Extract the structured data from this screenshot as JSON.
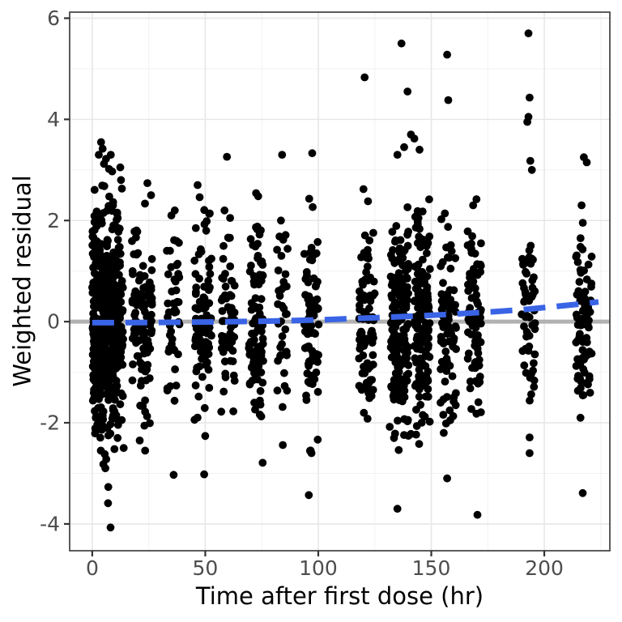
{
  "chart_data": {
    "type": "scatter",
    "title": "",
    "xlabel": "Time after first dose (hr)",
    "ylabel": "Weighted residual",
    "xlim": [
      -10,
      229
    ],
    "ylim": [
      -4.53,
      6.12
    ],
    "x_ticks": [
      0,
      50,
      100,
      150,
      200
    ],
    "x_tick_labels": [
      "0",
      "50",
      "100",
      "150",
      "200"
    ],
    "x_minor_ticks": [
      25,
      75,
      125,
      175,
      225
    ],
    "y_ticks": [
      6,
      4,
      2,
      0,
      -2,
      -4
    ],
    "y_tick_labels": [
      "6",
      "4",
      "2",
      "0",
      "-2",
      "-4"
    ],
    "y_minor_ticks": [
      5,
      3,
      1,
      -1,
      -3
    ],
    "grid": true,
    "legend": "none",
    "seed": 42,
    "marker": {
      "radius": 4.9
    },
    "colors": {
      "point": "#000000",
      "zero_line": "#b1b1b1",
      "smooth_line": "#3a64e6",
      "panel_border": "#333333",
      "major_grid": "#e7e7e7",
      "minor_grid": "#f2f2f2",
      "tick_mark": "#333333",
      "tick_text": "#4d4d4d",
      "axis_title_text": "#000000"
    },
    "zero_line": {
      "y": 0,
      "width": 5
    },
    "smooth": {
      "style": "dashed",
      "width": 7,
      "dash": "27 14",
      "points": [
        [
          0,
          -0.02
        ],
        [
          20,
          -0.018
        ],
        [
          40,
          -0.012
        ],
        [
          60,
          -0.002
        ],
        [
          80,
          0.012
        ],
        [
          100,
          0.035
        ],
        [
          115,
          0.06
        ],
        [
          130,
          0.085
        ],
        [
          145,
          0.115
        ],
        [
          160,
          0.15
        ],
        [
          175,
          0.19
        ],
        [
          190,
          0.235
        ],
        [
          205,
          0.3
        ],
        [
          215,
          0.345
        ],
        [
          224,
          0.39
        ]
      ]
    },
    "clusters": [
      {
        "t": 0.8,
        "w": 0.8,
        "n": 50,
        "sd": 1.15,
        "lo": -2.2,
        "hi": 2.55
      },
      {
        "t": 1.6,
        "w": 0.8,
        "n": 55,
        "sd": 1.2,
        "lo": -2.35,
        "hi": 2.7
      },
      {
        "t": 2.6,
        "w": 1.0,
        "n": 60,
        "sd": 1.2,
        "lo": -2.45,
        "hi": 2.85
      },
      {
        "t": 4.0,
        "w": 1.2,
        "n": 70,
        "sd": 1.25,
        "lo": -2.5,
        "hi": 2.9
      },
      {
        "t": 6.0,
        "w": 1.5,
        "n": 75,
        "sd": 1.25,
        "lo": -2.5,
        "hi": 2.8
      },
      {
        "t": 8.0,
        "w": 1.5,
        "n": 80,
        "sd": 1.2,
        "lo": -2.45,
        "hi": 2.75
      },
      {
        "t": 10.0,
        "w": 1.2,
        "n": 65,
        "sd": 1.15,
        "lo": -2.3,
        "hi": 2.6
      },
      {
        "t": 12.2,
        "w": 1.5,
        "n": 70,
        "sd": 1.15,
        "lo": -2.2,
        "hi": 2.6
      },
      {
        "t": 22,
        "w": 4.5,
        "n": 115,
        "sd": 1.05,
        "lo": -2.1,
        "hi": 2.35
      },
      {
        "t": 36,
        "w": 3.0,
        "n": 45,
        "sd": 0.9,
        "lo": -1.7,
        "hi": 2.0
      },
      {
        "t": 49,
        "w": 3.8,
        "n": 95,
        "sd": 1.0,
        "lo": -2.15,
        "hi": 2.4
      },
      {
        "t": 60,
        "w": 3.0,
        "n": 65,
        "sd": 0.95,
        "lo": -1.9,
        "hi": 2.1
      },
      {
        "t": 72.5,
        "w": 3.2,
        "n": 100,
        "sd": 1.0,
        "lo": -2.1,
        "hi": 2.25
      },
      {
        "t": 84,
        "w": 2.5,
        "n": 35,
        "sd": 0.95,
        "lo": -1.75,
        "hi": 1.95
      },
      {
        "t": 97,
        "w": 3.2,
        "n": 75,
        "sd": 1.05,
        "lo": -2.6,
        "hi": 2.3
      },
      {
        "t": 121.5,
        "w": 3.5,
        "n": 80,
        "sd": 0.9,
        "lo": -1.9,
        "hi": 2.1
      },
      {
        "t": 136,
        "w": 4.0,
        "n": 170,
        "sd": 1.1,
        "lo": -2.3,
        "hi": 2.9
      },
      {
        "t": 146,
        "w": 3.5,
        "n": 150,
        "sd": 1.05,
        "lo": -2.45,
        "hi": 2.6
      },
      {
        "t": 157.5,
        "w": 3.5,
        "n": 75,
        "sd": 1.0,
        "lo": -2.2,
        "hi": 2.1
      },
      {
        "t": 169,
        "w": 3.0,
        "n": 80,
        "sd": 0.9,
        "lo": -1.8,
        "hi": 2.35
      },
      {
        "t": 193,
        "w": 3.0,
        "n": 55,
        "sd": 0.95,
        "lo": -1.65,
        "hi": 2.0
      },
      {
        "t": 217.5,
        "w": 3.5,
        "n": 85,
        "sd": 0.95,
        "lo": -1.55,
        "hi": 2.25
      }
    ],
    "outliers": [
      [
        3.9,
        3.55
      ],
      [
        4.6,
        3.42
      ],
      [
        2.9,
        3.3
      ],
      [
        5.2,
        3.12
      ],
      [
        6.1,
        3.22
      ],
      [
        8.2,
        3.3
      ],
      [
        8.8,
        2.97
      ],
      [
        7.4,
        3.02
      ],
      [
        12.4,
        3.05
      ],
      [
        12.7,
        2.8
      ],
      [
        13.1,
        2.63
      ],
      [
        24.4,
        2.74
      ],
      [
        26,
        2.5
      ],
      [
        35,
        2.1
      ],
      [
        36.5,
        2.2
      ],
      [
        46.6,
        2.7
      ],
      [
        47.5,
        2.46
      ],
      [
        52,
        2.14
      ],
      [
        59.6,
        3.26
      ],
      [
        58.5,
        2.2
      ],
      [
        61,
        2.05
      ],
      [
        72.5,
        2.54
      ],
      [
        73.4,
        2.48
      ],
      [
        84,
        3.3
      ],
      [
        83.5,
        2.0
      ],
      [
        84.5,
        1.62
      ],
      [
        97.3,
        3.33
      ],
      [
        96,
        2.43
      ],
      [
        120.5,
        4.83
      ],
      [
        120,
        2.62
      ],
      [
        122,
        2.38
      ],
      [
        136.8,
        5.5
      ],
      [
        139.5,
        4.55
      ],
      [
        141,
        3.7
      ],
      [
        142.5,
        3.62
      ],
      [
        138,
        3.45
      ],
      [
        144.8,
        3.4
      ],
      [
        135,
        3.3
      ],
      [
        157,
        5.28
      ],
      [
        157.5,
        4.38
      ],
      [
        156,
        2.14
      ],
      [
        170,
        2.42
      ],
      [
        168.5,
        2.3
      ],
      [
        193,
        5.7
      ],
      [
        193.5,
        4.43
      ],
      [
        193,
        4.05
      ],
      [
        192.5,
        3.95
      ],
      [
        193.8,
        3.18
      ],
      [
        194.5,
        3.0
      ],
      [
        217.5,
        3.25
      ],
      [
        218.8,
        3.15
      ],
      [
        216.5,
        2.3
      ],
      [
        5.5,
        -2.62
      ],
      [
        6.2,
        -2.72
      ],
      [
        5.8,
        -2.9
      ],
      [
        4.9,
        -2.82
      ],
      [
        7.1,
        -3.27
      ],
      [
        7.0,
        -3.59
      ],
      [
        8.1,
        -4.07
      ],
      [
        9.8,
        -2.52
      ],
      [
        13.9,
        -2.5
      ],
      [
        11.2,
        -2.3
      ],
      [
        3.8,
        -2.55
      ],
      [
        23.4,
        -2.55
      ],
      [
        21,
        -2.35
      ],
      [
        36,
        -3.03
      ],
      [
        49.5,
        -3.02
      ],
      [
        50,
        -2.26
      ],
      [
        75.4,
        -2.79
      ],
      [
        84.3,
        -2.44
      ],
      [
        95.8,
        -3.43
      ],
      [
        97,
        -2.6
      ],
      [
        121.8,
        -1.92
      ],
      [
        131.6,
        -2.08
      ],
      [
        135,
        -3.7
      ],
      [
        135.6,
        -2.54
      ],
      [
        139.5,
        -1.97
      ],
      [
        141,
        -2.22
      ],
      [
        144.6,
        -2.42
      ],
      [
        133.5,
        -2.3
      ],
      [
        157,
        -3.1
      ],
      [
        155.5,
        -2.2
      ],
      [
        170.4,
        -3.82
      ],
      [
        170,
        -1.82
      ],
      [
        193.5,
        -2.29
      ],
      [
        193.5,
        -2.6
      ],
      [
        217,
        -3.39
      ],
      [
        216,
        -1.9
      ]
    ]
  }
}
